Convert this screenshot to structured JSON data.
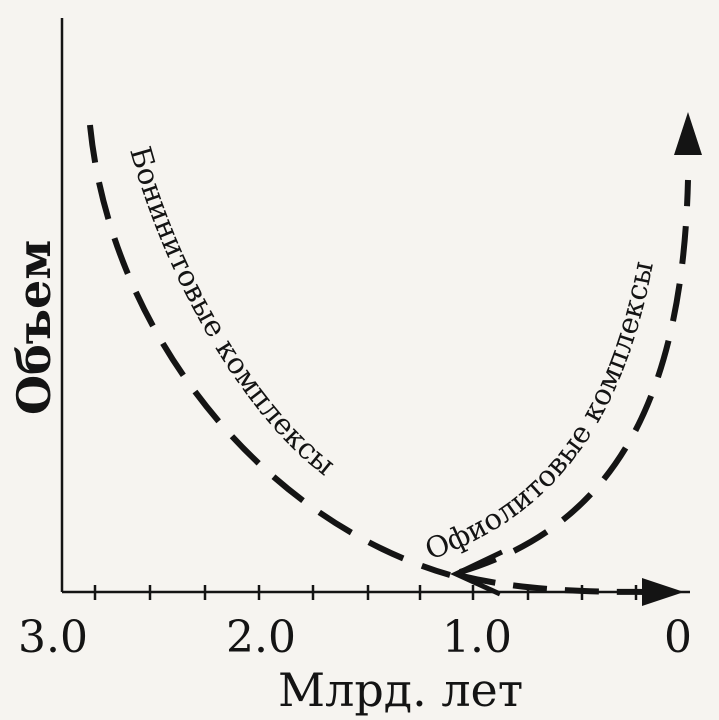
{
  "ylabel": "Объем",
  "xlabel": "Млрд. лет",
  "x_ticks": [
    "3.0",
    "2.0",
    "1.0",
    "0"
  ],
  "curves": {
    "boninite": "Бонинитовые комплексы",
    "ophiolite": "Офиолитовые комплексы"
  },
  "colors": {
    "ink": "#141414",
    "paper": "#f6f4f0"
  }
}
